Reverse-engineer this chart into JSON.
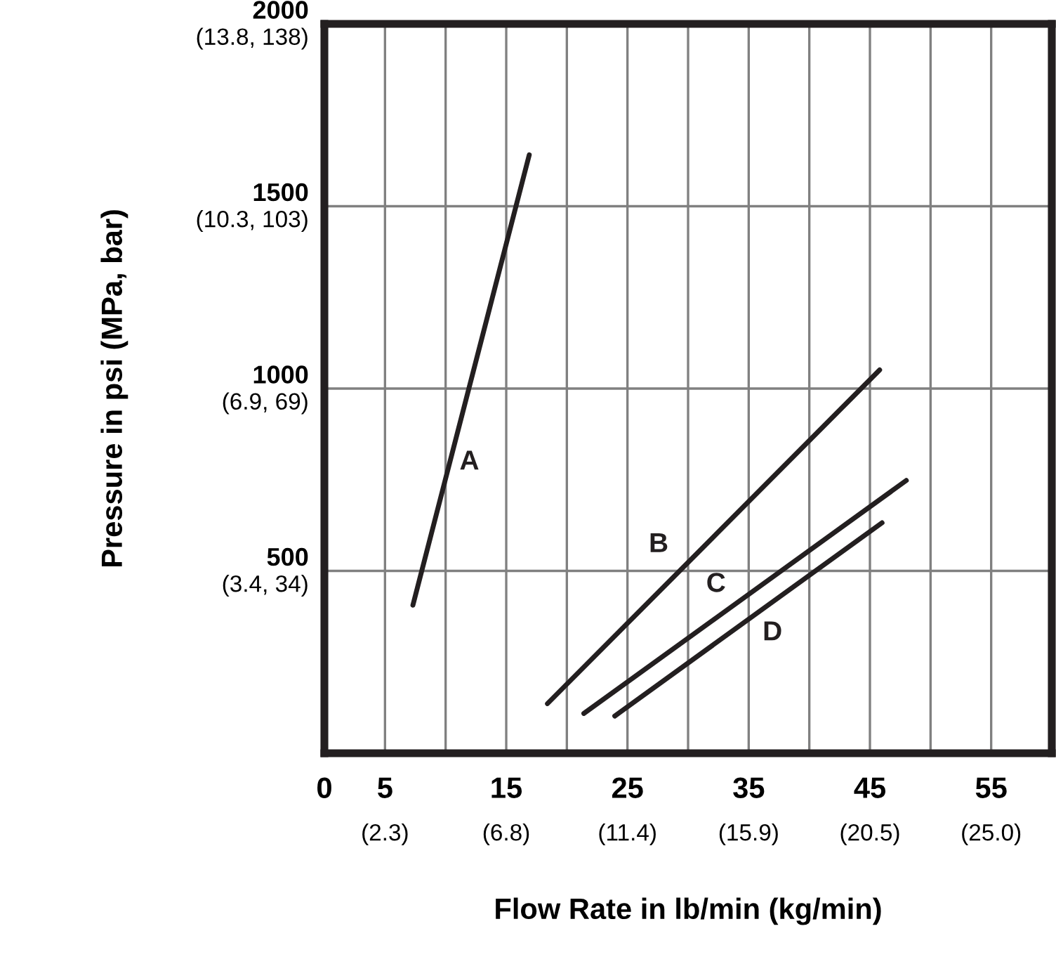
{
  "chart_data": {
    "type": "line",
    "xlabel": "Flow Rate in lb/min (kg/min)",
    "ylabel": "Pressure in psi (MPa, bar)",
    "series": [
      {
        "name": "A",
        "color": "#231f20",
        "x": [
          7.3,
          16.9
        ],
        "values": [
          406,
          1641
        ]
      },
      {
        "name": "B",
        "color": "#231f20",
        "x": [
          18.4,
          45.8
        ],
        "values": [
          136,
          1051
        ]
      },
      {
        "name": "C",
        "color": "#231f20",
        "x": [
          21.4,
          48.0
        ],
        "values": [
          109,
          748
        ]
      },
      {
        "name": "D",
        "color": "#231f20",
        "x": [
          23.95,
          46.0
        ],
        "values": [
          102,
          632
        ]
      }
    ],
    "xlim": [
      0,
      60
    ],
    "xticks": [
      0,
      5,
      {
        "value": 10,
        "label": null
      },
      15,
      {
        "value": 20,
        "label": null
      },
      25,
      {
        "value": 30,
        "label": null
      },
      35,
      {
        "value": 40,
        "label": null
      },
      45,
      {
        "value": 50,
        "label": null
      },
      55
    ],
    "ylim": [
      0,
      2000
    ],
    "yticks": [
      500,
      1000,
      1500,
      2000
    ],
    "annotations": [
      "(3.4, 34)",
      "(6.9, 69)",
      "(10.3, 103)",
      "(13.8, 138)",
      "(2.3)",
      "(6.8)",
      "(11.4)",
      "(15.9)",
      "(20.5)",
      "(25.0)"
    ],
    "grid": true,
    "marker": "none",
    "line_style": "solid"
  }
}
